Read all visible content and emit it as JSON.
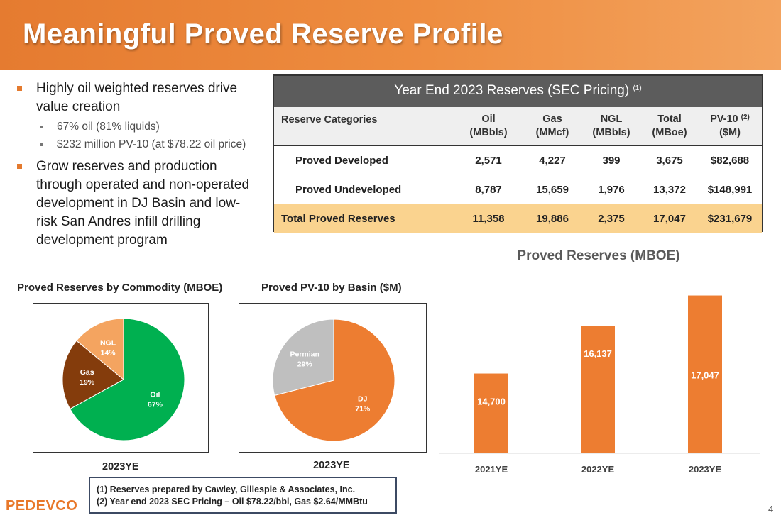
{
  "slide": {
    "title": "Meaningful Proved Reserve Profile",
    "page_number": "4",
    "logo_text": "PEDEVCO"
  },
  "bullets": {
    "b1": "Highly oil weighted reserves drive value creation",
    "b1_sub1": "67% oil (81% liquids)",
    "b1_sub2": "$232 million PV-10 (at $78.22 oil price)",
    "b2": "Grow reserves and production through operated and non-operated development in DJ Basin and low-risk San Andres infill drilling development program"
  },
  "reserves_table": {
    "title": "Year End 2023 Reserves (SEC Pricing)",
    "title_note": "(1)",
    "headers": {
      "category": "Reserve Categories",
      "oil_line1": "Oil",
      "oil_line2": "(MBbls)",
      "gas_line1": "Gas",
      "gas_line2": "(MMcf)",
      "ngl_line1": "NGL",
      "ngl_line2": "(MBbls)",
      "total_line1": "Total",
      "total_line2": "(MBoe)",
      "pv_line1": "PV-10",
      "pv_note": "(2)",
      "pv_line2": "($M)"
    },
    "rows": [
      {
        "category": "Proved Developed",
        "oil": "2,571",
        "gas": "4,227",
        "ngl": "399",
        "total": "3,675",
        "pv10": "$82,688"
      },
      {
        "category": "Proved Undeveloped",
        "oil": "8,787",
        "gas": "15,659",
        "ngl": "1,976",
        "total": "13,372",
        "pv10": "$148,991"
      },
      {
        "category": "Total Proved Reserves",
        "oil": "11,358",
        "gas": "19,886",
        "ngl": "2,375",
        "total": "17,047",
        "pv10": "$231,679"
      }
    ]
  },
  "footnotes": [
    "(1)   Reserves prepared by Cawley, Gillespie & Associates, Inc.",
    "(2)   Year end 2023 SEC Pricing – Oil $78.22/bbl, Gas $2.64/MMBtu"
  ],
  "colors": {
    "orange": "#ED7D31",
    "green": "#00B050",
    "brown": "#843C0C",
    "light_orange": "#F4A460",
    "gray": "#BFBFBF",
    "header_dark": "#5C5C5C",
    "total_row": "#FAD38F"
  },
  "chart_data": [
    {
      "type": "pie",
      "title": "Proved Reserves by Commodity (MBOE)",
      "xlabel": "2023YE",
      "slices": [
        {
          "name": "Oil",
          "value": 67,
          "label": "67%",
          "color": "#00B050"
        },
        {
          "name": "Gas",
          "value": 19,
          "label": "19%",
          "color": "#843C0C"
        },
        {
          "name": "NGL",
          "value": 14,
          "label": "14%",
          "color": "#F4A460"
        }
      ]
    },
    {
      "type": "pie",
      "title": "Proved PV-10 by Basin ($M)",
      "xlabel": "2023YE",
      "slices": [
        {
          "name": "DJ",
          "value": 71,
          "label": "71%",
          "color": "#ED7D31"
        },
        {
          "name": "Permian",
          "value": 29,
          "label": "29%",
          "color": "#BFBFBF"
        }
      ]
    },
    {
      "type": "bar",
      "title": "Proved Reserves (MBOE)",
      "categories": [
        "2021YE",
        "2022YE",
        "2023YE"
      ],
      "values": [
        14700,
        16137,
        17047
      ],
      "labels": [
        "14,700",
        "16,137",
        "17,047"
      ],
      "ylim": [
        12300,
        17400
      ],
      "color": "#ED7D31",
      "grid": false
    }
  ]
}
